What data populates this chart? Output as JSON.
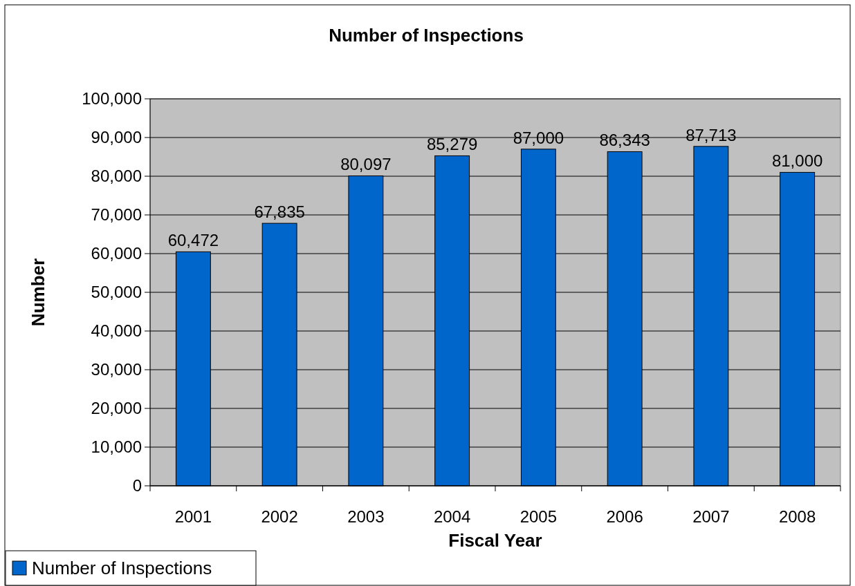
{
  "chart_data": {
    "type": "bar",
    "title": "Number of Inspections",
    "xlabel": "Fiscal Year",
    "ylabel": "Number",
    "categories": [
      "2001",
      "2002",
      "2003",
      "2004",
      "2005",
      "2006",
      "2007",
      "2008"
    ],
    "series": [
      {
        "name": "Number of Inspections",
        "color": "#0066cc",
        "values": [
          60472,
          67835,
          80097,
          85279,
          87000,
          86343,
          87713,
          81000
        ],
        "value_labels": [
          "60,472",
          "67,835",
          "80,097",
          "85,279",
          "87,000",
          "86,343",
          "87,713",
          "81,000"
        ]
      }
    ],
    "ylim": [
      0,
      100000
    ],
    "yticks": [
      {
        "value": 0,
        "label": "0"
      },
      {
        "value": 10000,
        "label": "10,000"
      },
      {
        "value": 20000,
        "label": "20,000"
      },
      {
        "value": 30000,
        "label": "30,000"
      },
      {
        "value": 40000,
        "label": "40,000"
      },
      {
        "value": 50000,
        "label": "50,000"
      },
      {
        "value": 60000,
        "label": "60,000"
      },
      {
        "value": 70000,
        "label": "70,000"
      },
      {
        "value": 80000,
        "label": "80,000"
      },
      {
        "value": 90000,
        "label": "90,000"
      },
      {
        "value": 100000,
        "label": "100,000"
      }
    ],
    "grid": "y",
    "legend": "bottom left"
  }
}
